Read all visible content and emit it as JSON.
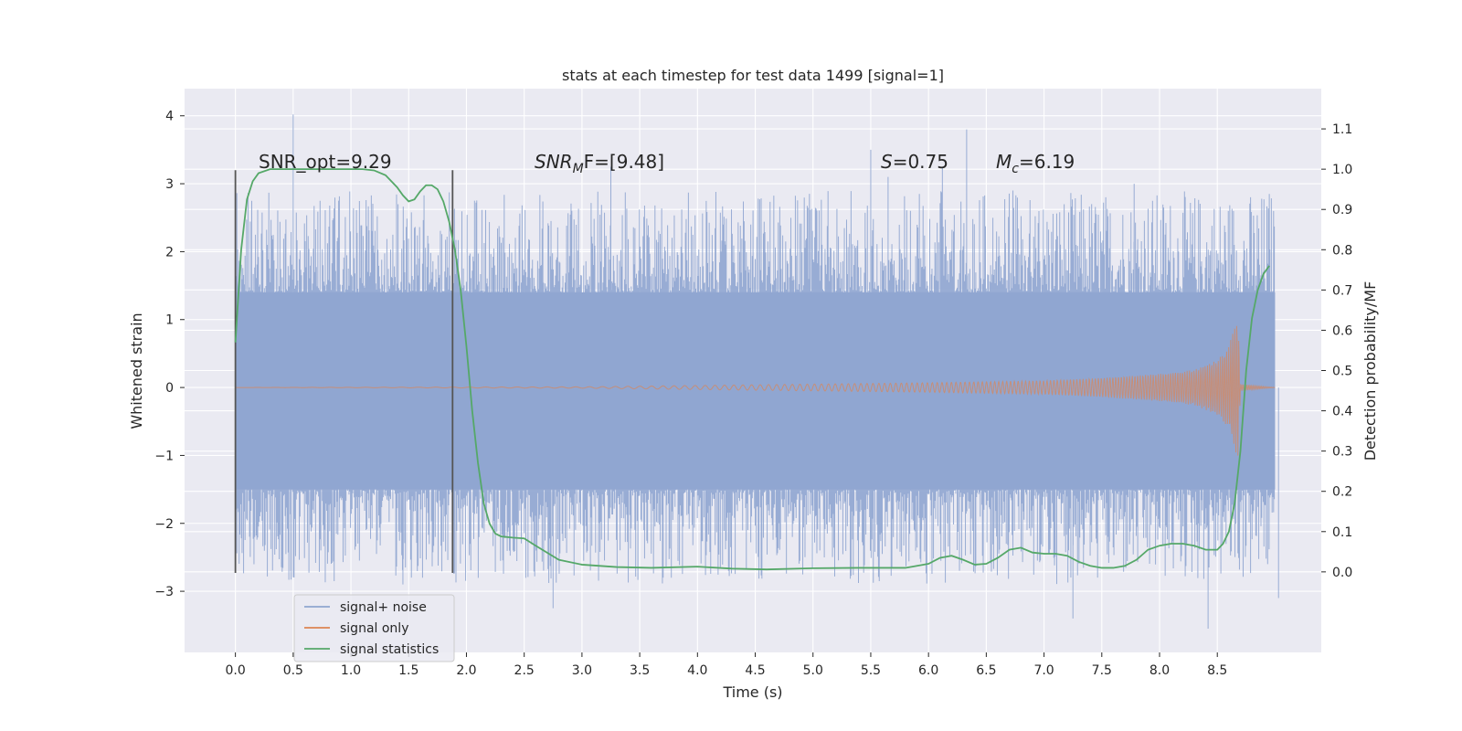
{
  "chart_data": {
    "type": "line",
    "title": "stats at each timestep for test data 1499 [signal=1]",
    "xlabel": "Time (s)",
    "ylabel": "Whitened strain",
    "ylabel_right": "Detection probability/MF",
    "xlim": [
      -0.44,
      9.4
    ],
    "ylim": [
      -3.9,
      4.4
    ],
    "ylim_right": [
      -0.2,
      1.2
    ],
    "x_ticks": [
      0.0,
      0.5,
      1.0,
      1.5,
      2.0,
      2.5,
      3.0,
      3.5,
      4.0,
      4.5,
      5.0,
      5.5,
      6.0,
      6.5,
      7.0,
      7.5,
      8.0,
      8.5
    ],
    "x_tick_labels": [
      "0.0",
      "0.5",
      "1.0",
      "1.5",
      "2.0",
      "2.5",
      "3.0",
      "3.5",
      "4.0",
      "4.5",
      "5.0",
      "5.5",
      "6.0",
      "6.5",
      "7.0",
      "7.5",
      "8.0",
      "8.5"
    ],
    "y_ticks": [
      -3,
      -2,
      -1,
      0,
      1,
      2,
      3,
      4
    ],
    "y_tick_labels": [
      "−3",
      "−2",
      "−1",
      "0",
      "1",
      "2",
      "3",
      "4"
    ],
    "y2_ticks": [
      0.0,
      0.1,
      0.2,
      0.3,
      0.4,
      0.5,
      0.6,
      0.7,
      0.8,
      0.9,
      1.0,
      1.1
    ],
    "y2_tick_labels": [
      "0.0",
      "0.1",
      "0.2",
      "0.3",
      "0.4",
      "0.5",
      "0.6",
      "0.7",
      "0.8",
      "0.9",
      "1.0",
      "1.1"
    ],
    "grid": true,
    "legend_placement": "lower-left",
    "colors": {
      "background": "#eaeaf2",
      "grid": "#ffffff",
      "noise": "#8fa5d0",
      "signal": "#dd8452",
      "stats": "#55a868",
      "marker": "#555555"
    },
    "annotations": {
      "snr_opt": "SNR_opt=9.29",
      "snr_mf_prefix": "SNR",
      "snr_mf_sub": "M",
      "snr_mf_suffix": "F=[9.48]",
      "s_main": "S",
      "s_value": "=0.75",
      "mc_main": "M",
      "mc_sub": "c",
      "mc_value": "=6.19"
    },
    "vertical_markers_x": [
      0.0,
      1.88
    ],
    "signal_noise_band": {
      "x_start": 0.0,
      "x_end": 9.0,
      "dense_low": -1.5,
      "dense_high": 1.4,
      "peak_spikes": [
        [
          0.5,
          4.02
        ],
        [
          0.48,
          -2.7
        ],
        [
          1.45,
          -2.9
        ],
        [
          2.75,
          -3.25
        ],
        [
          5.5,
          3.5
        ],
        [
          6.33,
          3.8
        ],
        [
          7.25,
          -3.4
        ],
        [
          8.42,
          -3.55
        ],
        [
          8.95,
          2.85
        ],
        [
          9.03,
          -3.1
        ],
        [
          3.25,
          3.25
        ],
        [
          6.12,
          3.25
        ],
        [
          7.78,
          3.0
        ],
        [
          5.65,
          3.1
        ]
      ]
    },
    "series": [
      {
        "name": "signal+ noise",
        "kind": "noisy-band"
      },
      {
        "name": "signal only",
        "kind": "chirp",
        "x_start": 0.0,
        "x_merger": 8.68,
        "x_end": 9.0,
        "envelope": [
          [
            0.0,
            0.0
          ],
          [
            3.0,
            0.01
          ],
          [
            4.0,
            0.03
          ],
          [
            5.0,
            0.05
          ],
          [
            6.0,
            0.07
          ],
          [
            7.0,
            0.1
          ],
          [
            7.5,
            0.14
          ],
          [
            8.0,
            0.2
          ],
          [
            8.3,
            0.26
          ],
          [
            8.5,
            0.4
          ],
          [
            8.6,
            0.6
          ],
          [
            8.66,
            0.98
          ],
          [
            8.68,
            1.02
          ],
          [
            8.7,
            0.05
          ],
          [
            9.0,
            0.0
          ]
        ]
      },
      {
        "name": "signal statistics",
        "kind": "line",
        "axis": "right",
        "x": [
          0.0,
          0.05,
          0.1,
          0.15,
          0.2,
          0.3,
          0.5,
          0.8,
          1.0,
          1.1,
          1.2,
          1.3,
          1.4,
          1.45,
          1.5,
          1.55,
          1.6,
          1.65,
          1.7,
          1.75,
          1.8,
          1.85,
          1.9,
          1.95,
          2.0,
          2.05,
          2.1,
          2.15,
          2.2,
          2.25,
          2.3,
          2.4,
          2.5,
          2.6,
          2.8,
          3.0,
          3.3,
          3.6,
          4.0,
          4.3,
          4.6,
          5.0,
          5.4,
          5.8,
          6.0,
          6.1,
          6.2,
          6.3,
          6.4,
          6.5,
          6.6,
          6.7,
          6.8,
          6.9,
          7.0,
          7.1,
          7.2,
          7.3,
          7.4,
          7.5,
          7.6,
          7.7,
          7.8,
          7.9,
          8.0,
          8.1,
          8.2,
          8.3,
          8.4,
          8.5,
          8.55,
          8.6,
          8.65,
          8.7,
          8.75,
          8.8,
          8.85,
          8.9,
          8.95
        ],
        "y": [
          0.57,
          0.8,
          0.925,
          0.97,
          0.99,
          1.0,
          1.0,
          1.0,
          1.0,
          1.0,
          0.997,
          0.985,
          0.955,
          0.935,
          0.92,
          0.925,
          0.945,
          0.96,
          0.96,
          0.95,
          0.92,
          0.87,
          0.8,
          0.7,
          0.56,
          0.4,
          0.27,
          0.17,
          0.12,
          0.095,
          0.088,
          0.085,
          0.083,
          0.065,
          0.03,
          0.018,
          0.012,
          0.01,
          0.013,
          0.008,
          0.006,
          0.009,
          0.01,
          0.01,
          0.02,
          0.035,
          0.04,
          0.03,
          0.018,
          0.02,
          0.035,
          0.055,
          0.06,
          0.048,
          0.045,
          0.045,
          0.04,
          0.025,
          0.015,
          0.01,
          0.01,
          0.015,
          0.03,
          0.055,
          0.065,
          0.07,
          0.07,
          0.065,
          0.055,
          0.055,
          0.07,
          0.1,
          0.17,
          0.3,
          0.5,
          0.63,
          0.7,
          0.74,
          0.76
        ]
      }
    ]
  }
}
